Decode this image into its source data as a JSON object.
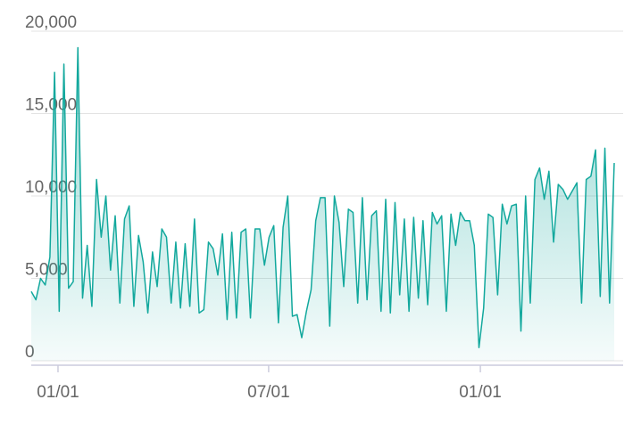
{
  "chart_data": {
    "type": "area",
    "values": [
      4200,
      3700,
      5000,
      4600,
      6300,
      17500,
      3000,
      18000,
      4400,
      4800,
      19000,
      3800,
      7000,
      3300,
      11000,
      7500,
      10000,
      5500,
      8800,
      3500,
      8600,
      9400,
      3300,
      7600,
      6000,
      2900,
      6600,
      4500,
      8000,
      7500,
      3500,
      7200,
      3200,
      7100,
      3300,
      8600,
      2900,
      3100,
      7200,
      6800,
      5200,
      7700,
      2500,
      7800,
      2600,
      7800,
      8000,
      2600,
      8000,
      8000,
      5800,
      7500,
      8200,
      2300,
      8100,
      10000,
      2700,
      2800,
      1400,
      3000,
      4300,
      8500,
      9900,
      9900,
      2100,
      10000,
      8400,
      4500,
      9200,
      9000,
      3500,
      9900,
      3700,
      8800,
      9100,
      3000,
      9800,
      2900,
      9600,
      4000,
      8600,
      3000,
      8700,
      3800,
      8500,
      3400,
      9000,
      8300,
      8800,
      3000,
      8900,
      7000,
      9000,
      8500,
      8500,
      7000,
      800,
      3200,
      8900,
      8700,
      4000,
      9500,
      8300,
      9400,
      9500,
      1800,
      10000,
      3500,
      11000,
      11700,
      9800,
      11500,
      7200,
      10700,
      10400,
      9800,
      10300,
      10800,
      3500,
      11000,
      11200,
      12800,
      3900,
      12900,
      3500,
      12000
    ],
    "color": "#12a89d",
    "xlim": [
      0,
      125
    ],
    "xticks": [
      {
        "value": 5.74,
        "label": "01/01"
      },
      {
        "value": 50.9,
        "label": "07/01"
      },
      {
        "value": 96.3,
        "label": "01/01"
      }
    ],
    "ylim": [
      0,
      20000
    ],
    "yticks": [
      0,
      {
        "value": 5000,
        "label": "5,000"
      },
      {
        "value": 10000,
        "label": "10,000"
      },
      {
        "value": 15000,
        "label": "15,000"
      },
      {
        "value": 20000,
        "label": "20,000"
      }
    ],
    "grid": true
  }
}
